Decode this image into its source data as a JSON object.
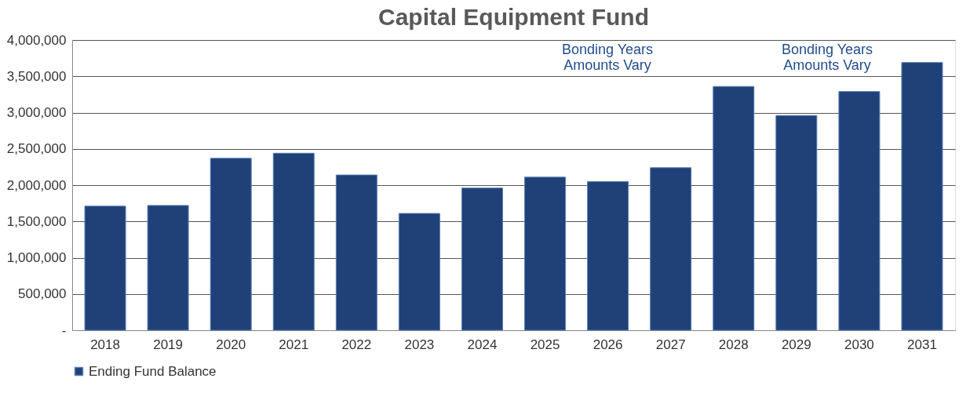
{
  "chart_data": {
    "type": "bar",
    "title": "Capital Equipment Fund",
    "categories": [
      "2018",
      "2019",
      "2020",
      "2021",
      "2022",
      "2023",
      "2024",
      "2025",
      "2026",
      "2027",
      "2028",
      "2029",
      "2030",
      "2031"
    ],
    "series": [
      {
        "name": "Ending Fund Balance",
        "color": "#1f4178",
        "values": [
          1710000,
          1720000,
          2370000,
          2440000,
          2140000,
          1610000,
          1960000,
          2110000,
          2050000,
          2240000,
          3360000,
          2960000,
          3290000,
          3690000
        ]
      }
    ],
    "ylim": [
      0,
      4000000
    ],
    "yticks": [
      {
        "value": 0,
        "label": "-"
      },
      {
        "value": 500000,
        "label": "500,000"
      },
      {
        "value": 1000000,
        "label": "1,000,000"
      },
      {
        "value": 1500000,
        "label": "1,500,000"
      },
      {
        "value": 2000000,
        "label": "2,000,000"
      },
      {
        "value": 2500000,
        "label": "2,500,000"
      },
      {
        "value": 3000000,
        "label": "3,000,000"
      },
      {
        "value": 3500000,
        "label": "3,500,000"
      },
      {
        "value": 4000000,
        "label": "4,000,000"
      }
    ],
    "annotations": [
      "Bonding Years\nAmounts Vary",
      "Bonding Years\nAmounts Vary"
    ],
    "grid": "y",
    "legend": "bottom"
  }
}
